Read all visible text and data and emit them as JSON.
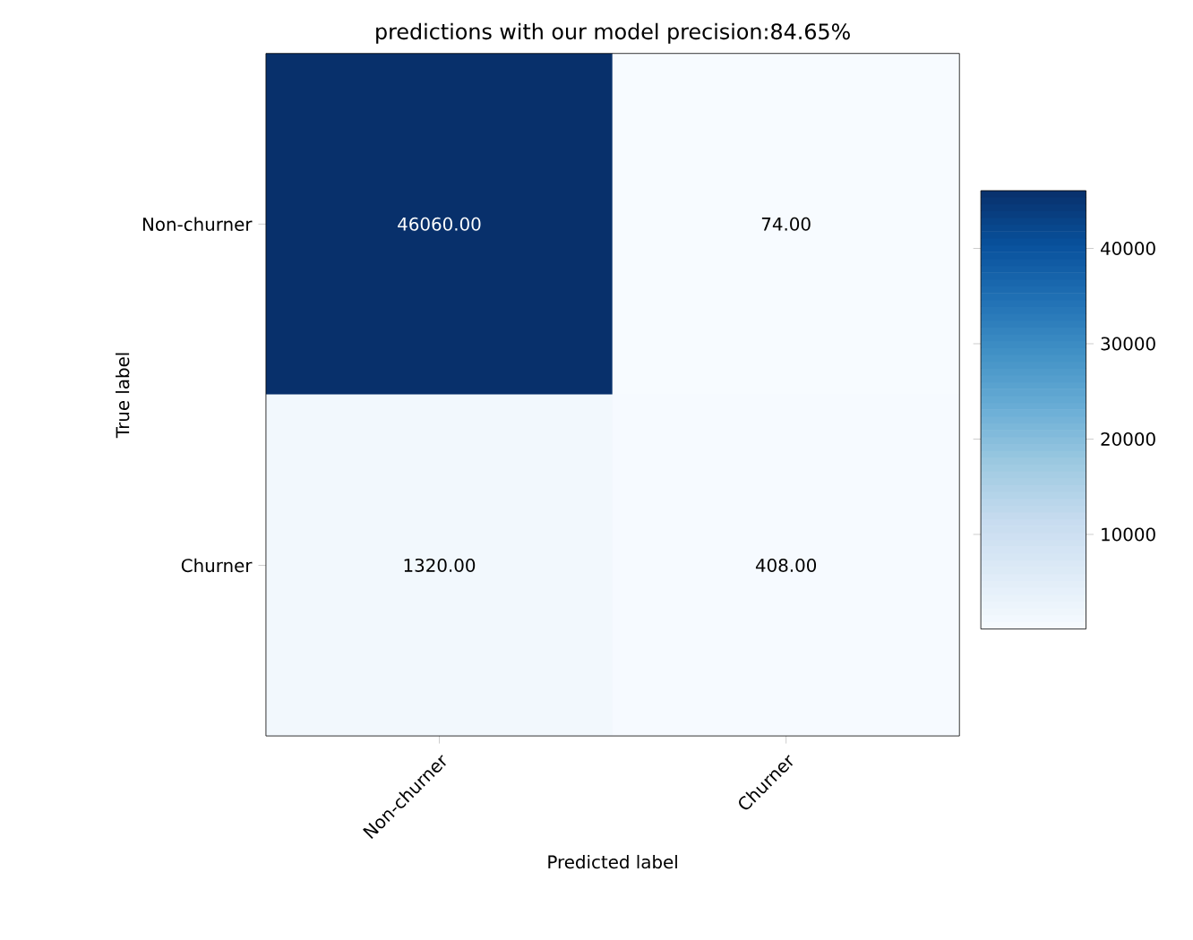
{
  "chart_data": {
    "type": "heatmap",
    "title": "predictions with our model precision:84.65%",
    "xlabel": "Predicted label",
    "ylabel": "True label",
    "categories": [
      "Non-churner",
      "Churner"
    ],
    "y_categories": [
      "Non-churner",
      "Churner"
    ],
    "cells": [
      [
        46060,
        74
      ],
      [
        1320,
        408
      ]
    ],
    "cell_labels": [
      [
        "46060.00",
        "74.00"
      ],
      [
        "1320.00",
        "408.00"
      ]
    ],
    "clim": [
      74,
      46060
    ],
    "cticks": [
      10000,
      20000,
      30000,
      40000
    ]
  }
}
